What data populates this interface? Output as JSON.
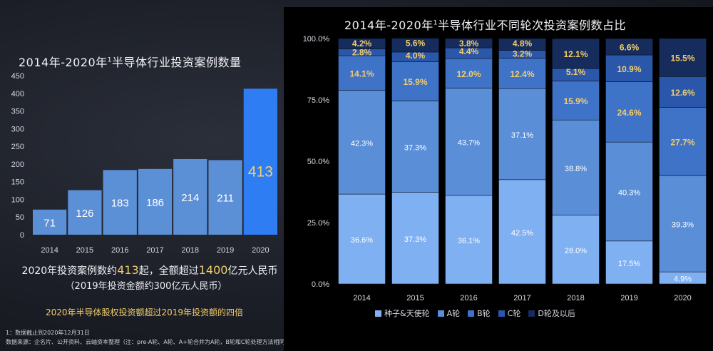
{
  "left": {
    "title": "2014年-2020年",
    "title_sup": "1",
    "title_rest": "半导体行业投资案例数量",
    "summary_prefix": "2020年投资案例数约",
    "summary_count": "413",
    "summary_mid": "起，全额超过",
    "summary_amount": "1400",
    "summary_suffix": "亿元人民币",
    "summary_line2": "（2019年投资金额约300亿元人民币）",
    "highlight_note": "2020年半导体股权投资额超过2019年投资额的四倍"
  },
  "footnotes": {
    "line1": "1：数据截止到2020年12月31日",
    "line2": "数据来源：企名片、公开资料、云岫资本整理（注：pre-A轮、A轮、A+轮合并为A轮，B轮和C轮处理方法相同）"
  },
  "right": {
    "title": "2014年-2020年",
    "title_sup": "1",
    "title_rest": "半导体行业不同轮次投资案例数占比"
  },
  "colors": {
    "left_bar": "#5b8fd6",
    "left_bar_highlight": "#2f7df2",
    "seed": "#7fb0f2",
    "a": "#5a8fd8",
    "b": "#3f73c8",
    "c": "#2a57aa",
    "d": "#152c5c"
  },
  "chart_data": [
    {
      "type": "bar",
      "title": "2014年-2020年1半导体行业投资案例数量",
      "categories": [
        "2014",
        "2015",
        "2016",
        "2017",
        "2018",
        "2019",
        "2020"
      ],
      "values": [
        71,
        126,
        183,
        186,
        214,
        211,
        413
      ],
      "value_labels": [
        "71",
        "126",
        "183",
        "186",
        "214",
        "211",
        "413"
      ],
      "ylim": [
        0,
        450
      ],
      "yticks": [
        "0",
        "50",
        "100",
        "150",
        "200",
        "250",
        "300",
        "350",
        "400",
        "450"
      ],
      "highlight_index": 6
    },
    {
      "type": "bar",
      "stacked": true,
      "title": "2014年-2020年1半导体行业不同轮次投资案例数占比",
      "categories": [
        "2014",
        "2015",
        "2016",
        "2017",
        "2018",
        "2019",
        "2020"
      ],
      "ylim": [
        0,
        100
      ],
      "yticks": [
        "0.0%",
        "25.0%",
        "50.0%",
        "75.0%",
        "100.0%"
      ],
      "series": [
        {
          "name": "种子&天使轮",
          "values": [
            36.6,
            37.3,
            36.1,
            42.5,
            28.0,
            17.5,
            4.9
          ],
          "labels": [
            "36.6%",
            "37.3%",
            "36.1%",
            "42.5%",
            "28.0%",
            "17.5%",
            "4.9%"
          ]
        },
        {
          "name": "A轮",
          "values": [
            42.3,
            37.3,
            43.7,
            37.1,
            38.8,
            40.3,
            39.3
          ],
          "labels": [
            "42.3%",
            "37.3%",
            "43.7%",
            "37.1%",
            "38.8%",
            "40.3%",
            "39.3%"
          ]
        },
        {
          "name": "B轮",
          "values": [
            14.1,
            15.9,
            12.0,
            12.4,
            15.9,
            24.6,
            27.7
          ],
          "labels": [
            "14.1%",
            "15.9%",
            "12.0%",
            "12.4%",
            "15.9%",
            "24.6%",
            "27.7%"
          ]
        },
        {
          "name": "C轮",
          "values": [
            2.8,
            4.0,
            4.4,
            3.2,
            5.1,
            10.9,
            12.6
          ],
          "labels": [
            "2.8%",
            "4.0%",
            "4.4%",
            "3.2%",
            "5.1%",
            "10.9%",
            "12.6%"
          ]
        },
        {
          "name": "D轮及以后",
          "values": [
            4.2,
            5.6,
            3.8,
            4.8,
            12.1,
            6.6,
            15.5
          ],
          "labels": [
            "4.2%",
            "5.6%",
            "3.8%",
            "4.8%",
            "12.1%",
            "6.6%",
            "15.5%"
          ]
        }
      ],
      "legend": [
        "种子&天使轮",
        "A轮",
        "B轮",
        "C轮",
        "D轮及以后"
      ]
    }
  ]
}
